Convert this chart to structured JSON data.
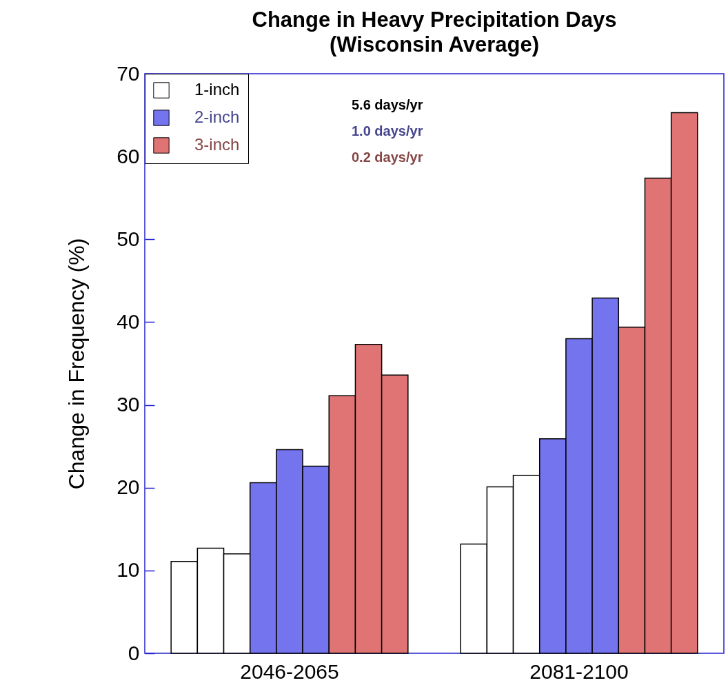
{
  "chart_data": {
    "type": "bar",
    "title": "Change in Heavy Precipitation Days\n(Wisconsin Average)",
    "ylabel": "Change in Frequency (%)",
    "categories": [
      null,
      null,
      null,
      null,
      "2046-2065",
      null,
      null,
      null,
      null,
      null,
      null,
      null,
      null,
      null,
      null,
      "2081-2100",
      null,
      null,
      null,
      null
    ],
    "series": [
      {
        "name": "1-inch",
        "color": "#ffffff",
        "values": [
          11.1,
          12.7,
          12.0,
          null,
          null,
          null,
          null,
          null,
          null,
          null,
          null,
          13.2,
          20.1,
          21.5,
          null,
          null,
          null,
          null,
          null,
          null
        ]
      },
      {
        "name": "2-inch",
        "color": "#7474ee",
        "values": [
          null,
          null,
          null,
          20.6,
          24.6,
          22.6,
          null,
          null,
          null,
          null,
          null,
          null,
          null,
          null,
          25.9,
          38.0,
          42.9,
          null,
          null,
          null
        ]
      },
      {
        "name": "3-inch",
        "color": "#e07474",
        "values": [
          null,
          null,
          null,
          null,
          null,
          null,
          31.1,
          37.3,
          33.6,
          null,
          null,
          null,
          null,
          null,
          null,
          null,
          null,
          39.4,
          57.4,
          65.3
        ]
      }
    ],
    "ylim": [
      0,
      70
    ],
    "yticks": [
      0,
      10,
      20,
      30,
      40,
      50,
      60,
      70
    ],
    "grid": false,
    "legend": "top left",
    "annotations": [
      "5.6 days/yr",
      "1.0 days/yr",
      "0.2 days/yr"
    ]
  }
}
